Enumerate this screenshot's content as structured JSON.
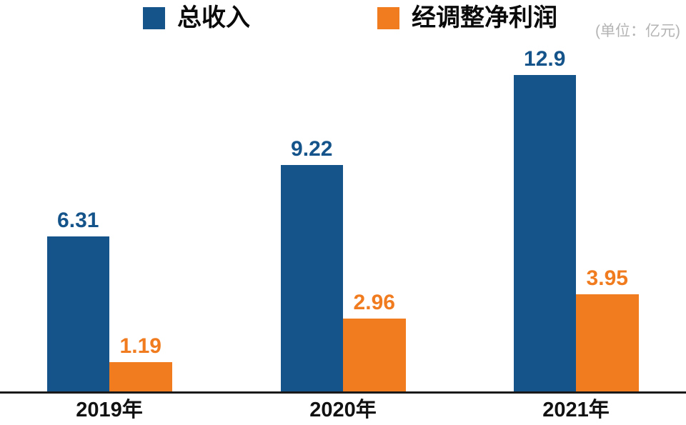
{
  "unit_note": "(单位：亿元)",
  "legend": {
    "items": [
      {
        "label": "总收入",
        "color": "#15548A"
      },
      {
        "label": "经调整净利润",
        "color": "#F07C1F"
      }
    ]
  },
  "chart_data": {
    "type": "bar",
    "title": "",
    "unit": "亿元",
    "categories": [
      "2019年",
      "2020年",
      "2021年"
    ],
    "series": [
      {
        "name": "总收入",
        "color": "#15548A",
        "values": [
          6.31,
          9.22,
          12.9
        ]
      },
      {
        "name": "经调整净利润",
        "color": "#F07C1F",
        "values": [
          1.19,
          2.96,
          3.95
        ]
      }
    ],
    "ylim": [
      0,
      13.5
    ],
    "value_labels": true,
    "legend_position": "top",
    "grid": false
  },
  "colors": {
    "series_blue": "#15548A",
    "series_orange": "#F07C1F",
    "axis": "#1A1A1A",
    "unit_note": "#B4B4B4",
    "category_label": "#111111"
  }
}
